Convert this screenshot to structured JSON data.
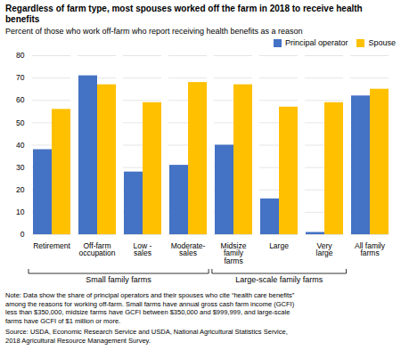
{
  "chart_data": {
    "type": "bar",
    "title": "Regardless of farm type, most spouses worked off the farm in 2018 to receive health\nbenefits",
    "subtitle": "Percent of those who work off-farm who report receiving health benefits as a reason",
    "categories": [
      "Retirement",
      "Off-farm\noccupation",
      "Low -\nsales",
      "Moderate-\nsales",
      "Midsize\nfamily\nfarms",
      "Large",
      "Very\nlarge",
      "All family\nfarms"
    ],
    "series": [
      {
        "name": "Principal operator",
        "color": "#4472C4",
        "values": [
          38,
          71,
          28,
          31,
          40,
          16,
          1,
          62
        ]
      },
      {
        "name": "Spouse",
        "color": "#FFC000",
        "values": [
          56,
          67,
          59,
          68,
          67,
          57,
          59,
          65
        ]
      }
    ],
    "ylim": [
      0,
      80
    ],
    "yticks": [
      0,
      10,
      20,
      30,
      40,
      50,
      60,
      70,
      80
    ],
    "grid": true,
    "legend": "upper right",
    "annotations": [
      {
        "text": "Small family farms",
        "from": "Retirement",
        "to": "Moderate-\nsales"
      },
      {
        "text": "Large-scale family farms",
        "from": "Midsize\nfamily\nfarms",
        "to": "Very\nlarge"
      }
    ],
    "note": "Note: Data show the share of principal operators and their spouses who cite “health care benefits”\namong the reasons for working off-farm. Small farms have annual gross cash farm income (GCFI)\nless than $350,000, midsize farms have GCFI between $350,000 and $999,999, and large-scale\nfarms have GCFI of $1 million or more.",
    "source": "Source: USDA, Economic Research Service and USDA, National Agricultural Statistics Service,\n2018 Agricultural Resource Management Survey."
  }
}
